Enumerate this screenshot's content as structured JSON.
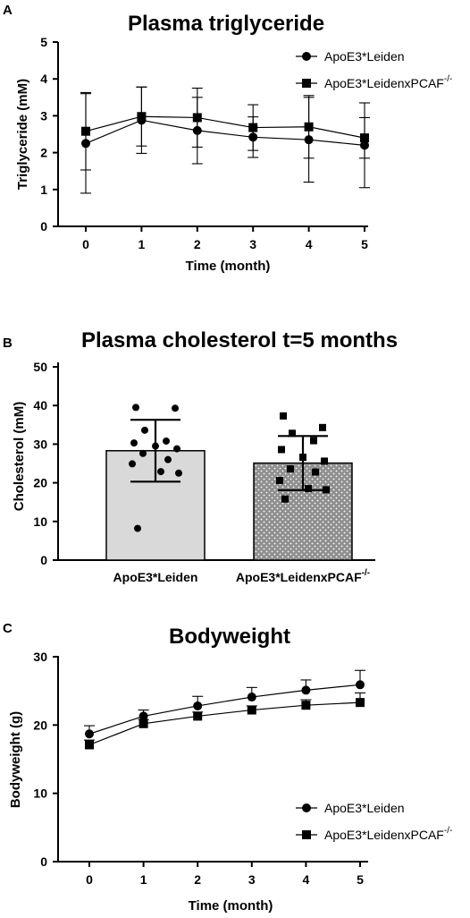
{
  "panels": [
    {
      "letter": "A",
      "chart_data": {
        "type": "line",
        "title": "Plasma triglyceride",
        "xlabel": "Time  (month)",
        "ylabel": "Triglyceride (mM)",
        "x": [
          0,
          1,
          2,
          3,
          4,
          5
        ],
        "xlim": [
          0,
          5
        ],
        "ylim": [
          0,
          5
        ],
        "yticks": [
          0,
          1,
          2,
          3,
          4,
          5
        ],
        "legend_position": "top-right",
        "grid": false,
        "series": [
          {
            "name": "ApoE3*Leiden",
            "marker": "circle",
            "values": [
              2.25,
              2.88,
              2.6,
              2.42,
              2.35,
              2.2
            ],
            "err": [
              1.35,
              0.9,
              0.9,
              0.55,
              1.15,
              1.15
            ]
          },
          {
            "name": "ApoE3*LeidenxPCAF",
            "name_sup": "-/-",
            "marker": "square",
            "values": [
              2.58,
              2.98,
              2.95,
              2.68,
              2.7,
              2.4
            ],
            "err": [
              1.05,
              0.8,
              0.8,
              0.62,
              0.85,
              0.55
            ]
          }
        ]
      }
    },
    {
      "letter": "B",
      "chart_data": {
        "type": "bar",
        "title": "Plasma cholesterol t=5 months",
        "xlabel": "",
        "ylabel": "Cholesterol (mM)",
        "categories": [
          "ApoE3*Leiden",
          "ApoE3*LeidenxPCAF"
        ],
        "category_sup": [
          "",
          "-/-"
        ],
        "values": [
          28.3,
          25.1
        ],
        "err": [
          8.0,
          7.0
        ],
        "ylim": [
          0,
          50
        ],
        "yticks": [
          0,
          10,
          20,
          30,
          40,
          50
        ],
        "grid": false,
        "points": [
          [
            39.5,
            39.3,
            33.6,
            30.8,
            30.3,
            29.5,
            28.8,
            27.6,
            26.0,
            24.9,
            22.9,
            22.5,
            8.2
          ],
          [
            37.3,
            34.3,
            32.8,
            30.9,
            28.6,
            26.6,
            25.6,
            23.6,
            22.8,
            20.6,
            18.5,
            18.2,
            15.8
          ]
        ]
      }
    },
    {
      "letter": "C",
      "chart_data": {
        "type": "line",
        "title": "Bodyweight",
        "xlabel": "Time (month)",
        "ylabel": "Bodyweight (g)",
        "x": [
          0,
          1,
          2,
          3,
          4,
          5
        ],
        "xlim": [
          0,
          5
        ],
        "ylim": [
          0,
          30
        ],
        "yticks": [
          0,
          10,
          20,
          30
        ],
        "legend_position": "bottom-right",
        "grid": false,
        "series": [
          {
            "name": "ApoE3*Leiden",
            "marker": "circle",
            "values": [
              18.7,
              21.3,
              22.8,
              24.1,
              25.1,
              25.9
            ],
            "err": [
              1.2,
              0.9,
              1.4,
              1.4,
              1.5,
              2.1
            ]
          },
          {
            "name": "ApoE3*LeidenxPCAF",
            "name_sup": "-/-",
            "marker": "square",
            "values": [
              17.1,
              20.2,
              21.3,
              22.2,
              22.9,
              23.3
            ],
            "err": [
              0.7,
              0.6,
              0.6,
              0.6,
              0.8,
              1.4
            ]
          }
        ]
      }
    }
  ]
}
